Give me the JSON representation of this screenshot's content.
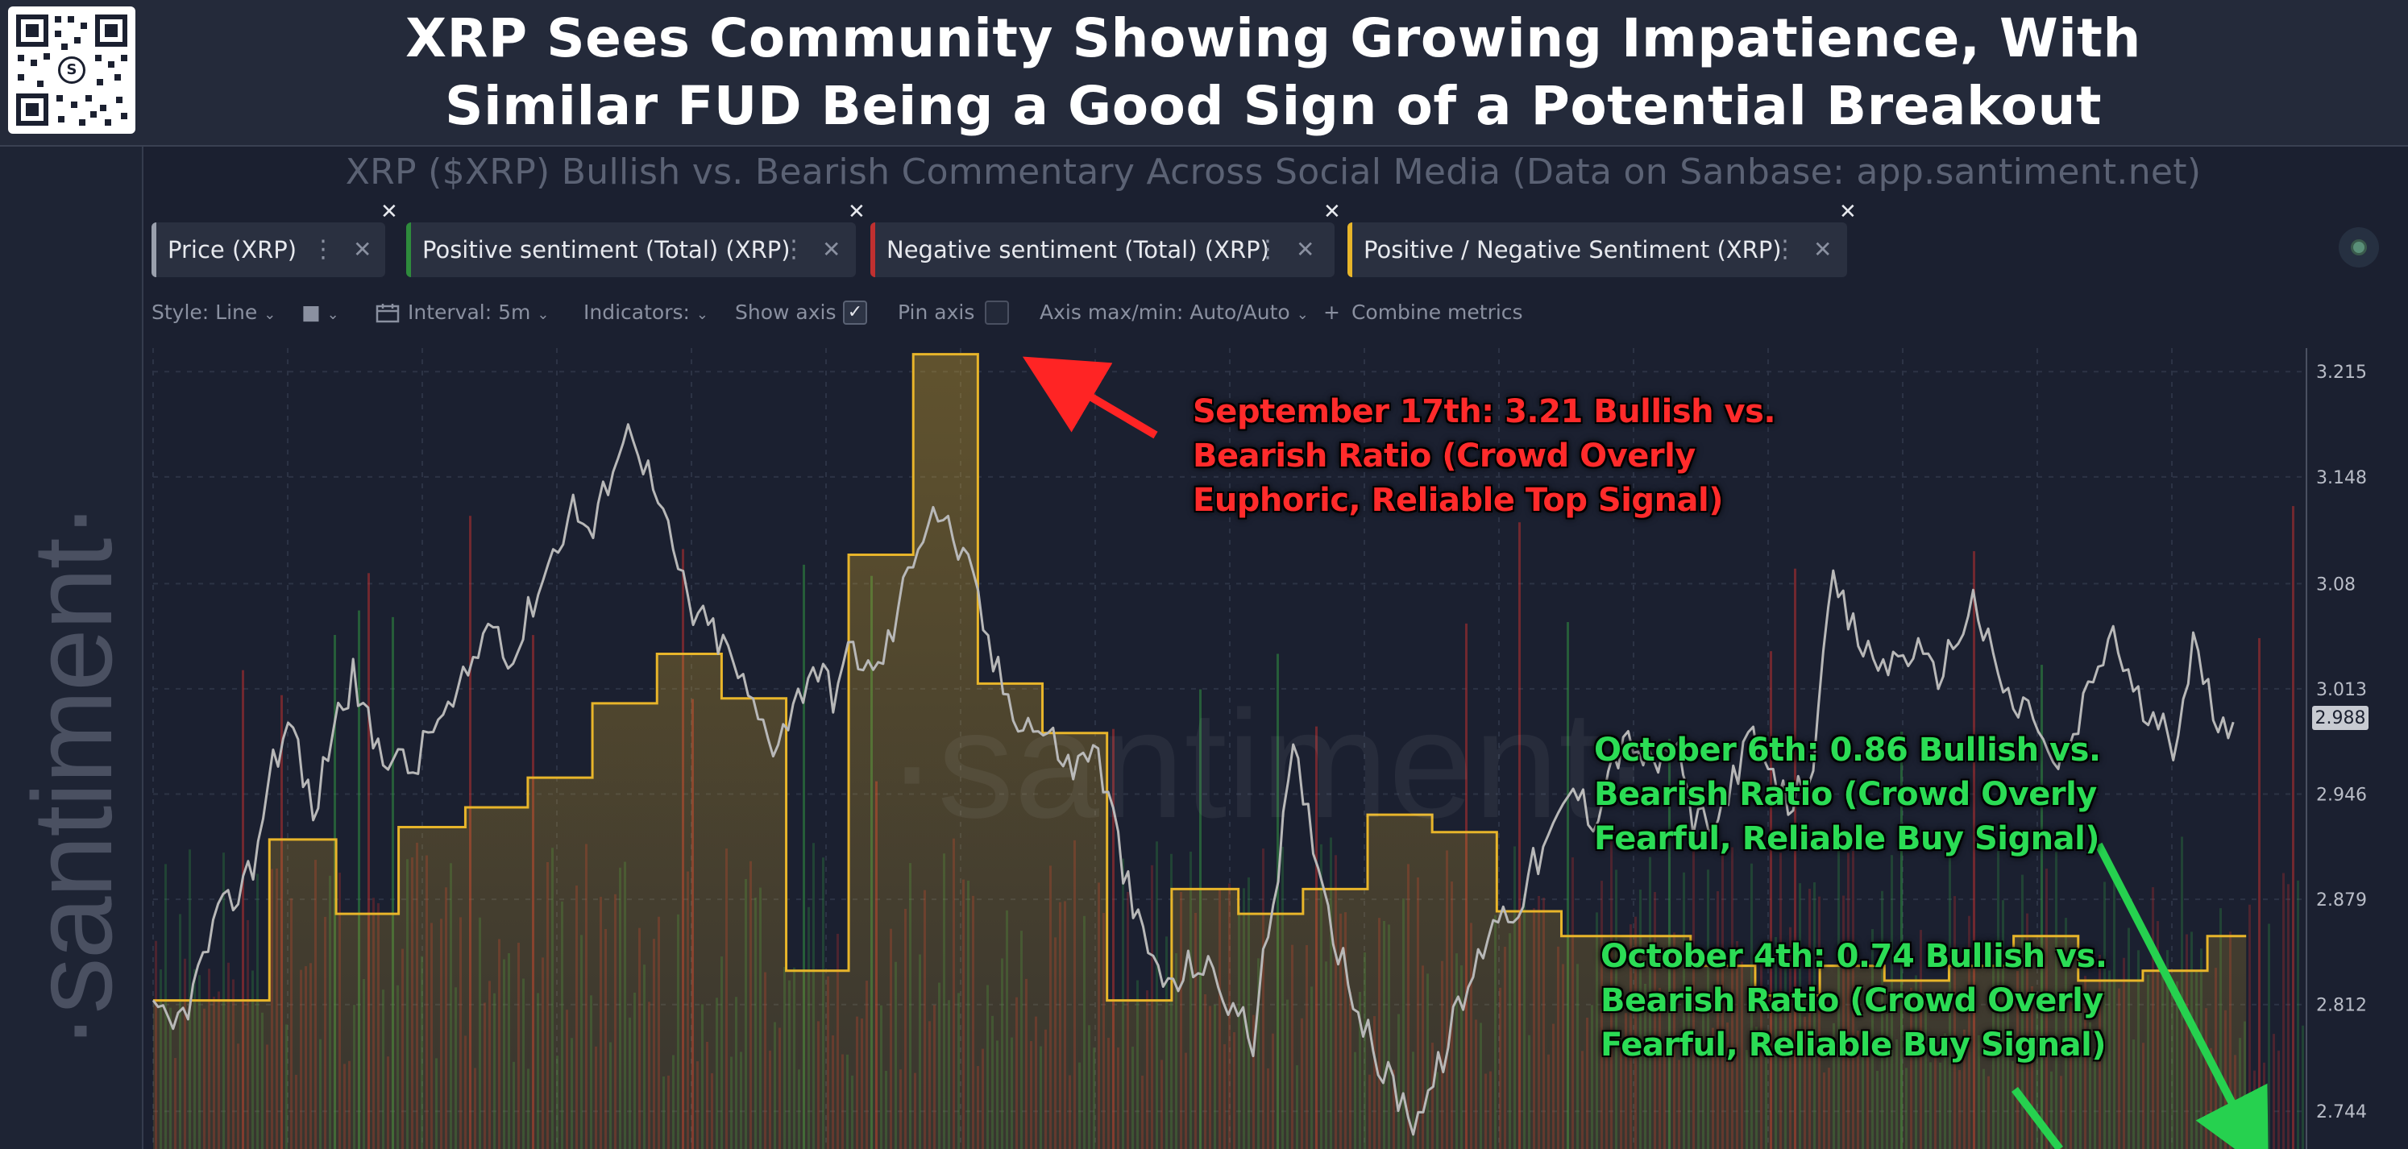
{
  "header": {
    "title_line1": "XRP Sees Community Showing Growing Impatience, With",
    "title_line2": "Similar FUD Being a Good Sign of a Potential Breakout",
    "subtitle": "XRP ($XRP) Bullish vs. Bearish Commentary Across Social Media (Data on Sanbase: app.santiment.net)"
  },
  "brand": {
    "side_watermark": "·santiment·",
    "center_watermark": "·santiment·",
    "qr_logo": "S"
  },
  "tabs": [
    {
      "label": "Price (XRP)",
      "color": "#9aa0ad"
    },
    {
      "label": "Positive sentiment (Total) (XRP)",
      "color": "#2e8b3c"
    },
    {
      "label": "Negative sentiment (Total) (XRP)",
      "color": "#c03030"
    },
    {
      "label": "Positive / Negative Sentiment (XRP)",
      "color": "#e8b52a"
    }
  ],
  "toolbar": {
    "style": "Style: Line",
    "interval": "Interval: 5m",
    "indicators": "Indicators:",
    "show_axis": "Show axis",
    "pin_axis": "Pin axis",
    "axis_maxmin": "Axis max/min: Auto/Auto",
    "combine": "Combine metrics",
    "plus": "+",
    "chevron": "⌄",
    "check": "✓"
  },
  "icons": {
    "more": "⋮",
    "close": "✕",
    "close_corner": "✕",
    "color_swatch": "■",
    "interval": "calendar-icon"
  },
  "annotations": {
    "sep17": "September 17th: 3.21 Bullish vs.\nBearish Ratio (Crowd Overly\nEuphoric, Reliable Top Signal)",
    "oct6": "October 6th: 0.86 Bullish vs.\nBearish Ratio (Crowd Overly\nFearful, Reliable Buy Signal)",
    "oct4": "October 4th: 0.74 Bullish vs.\nBearish Ratio (Crowd Overly\nFearful, Reliable Buy Signal)"
  },
  "chart_data": {
    "type": "line",
    "title": "XRP ($XRP) Bullish vs. Bearish Commentary Across Social Media (Data on Sanbase: app.santiment.net)",
    "y_axis_ticks": [
      3.215,
      3.148,
      3.08,
      3.013,
      2.946,
      2.879,
      2.812,
      2.744
    ],
    "ylim": [
      2.72,
      3.23
    ],
    "current_price_label": "2.988",
    "price_points": [
      2.805,
      2.795,
      2.82,
      2.86,
      2.88,
      2.9,
      2.97,
      2.99,
      2.93,
      2.99,
      3.02,
      2.98,
      2.97,
      2.96,
      2.99,
      3.0,
      3.03,
      3.06,
      3.03,
      3.07,
      3.1,
      3.13,
      3.11,
      3.16,
      3.18,
      3.14,
      3.1,
      3.06,
      3.05,
      3.03,
      3.0,
      2.98,
      3.0,
      3.03,
      3.01,
      3.04,
      3.02,
      3.05,
      3.1,
      3.13,
      3.11,
      3.08,
      3.03,
      3.0,
      2.99,
      2.98,
      2.96,
      2.98,
      2.93,
      2.87,
      2.84,
      2.82,
      2.84,
      2.83,
      2.81,
      2.79,
      2.88,
      2.97,
      2.92,
      2.86,
      2.82,
      2.78,
      2.76,
      2.74,
      2.76,
      2.8,
      2.83,
      2.87,
      2.87,
      2.9,
      2.92,
      2.95,
      2.93,
      2.97,
      2.98,
      2.96,
      2.98,
      2.93,
      2.92,
      2.96,
      2.98,
      2.95,
      2.94,
      2.97,
      3.08,
      3.05,
      3.03,
      3.03,
      3.04,
      3.02,
      3.04,
      3.07,
      3.03,
      3.0,
      3.0,
      2.96,
      2.98,
      3.02,
      3.05,
      3.01,
      2.99,
      2.98,
      3.04,
      3.0,
      2.99
    ],
    "series": [
      {
        "name": "Positive / Negative Sentiment (XRP)",
        "color": "#e8b52a",
        "type": "step",
        "steps": [
          {
            "start": 0.0,
            "end": 0.054,
            "value": 0.6
          },
          {
            "start": 0.054,
            "end": 0.085,
            "value": 1.25
          },
          {
            "start": 0.085,
            "end": 0.114,
            "value": 0.95
          },
          {
            "start": 0.114,
            "end": 0.145,
            "value": 1.3
          },
          {
            "start": 0.145,
            "end": 0.174,
            "value": 1.38
          },
          {
            "start": 0.174,
            "end": 0.204,
            "value": 1.5
          },
          {
            "start": 0.204,
            "end": 0.234,
            "value": 1.8
          },
          {
            "start": 0.234,
            "end": 0.264,
            "value": 2.0
          },
          {
            "start": 0.264,
            "end": 0.294,
            "value": 1.82
          },
          {
            "start": 0.294,
            "end": 0.323,
            "value": 0.72
          },
          {
            "start": 0.323,
            "end": 0.353,
            "value": 2.4
          },
          {
            "start": 0.353,
            "end": 0.383,
            "value": 3.21
          },
          {
            "start": 0.383,
            "end": 0.413,
            "value": 1.88
          },
          {
            "start": 0.413,
            "end": 0.443,
            "value": 1.68
          },
          {
            "start": 0.443,
            "end": 0.473,
            "value": 0.6
          },
          {
            "start": 0.473,
            "end": 0.504,
            "value": 1.05
          },
          {
            "start": 0.504,
            "end": 0.534,
            "value": 0.95
          },
          {
            "start": 0.534,
            "end": 0.564,
            "value": 1.05
          },
          {
            "start": 0.564,
            "end": 0.594,
            "value": 1.35
          },
          {
            "start": 0.594,
            "end": 0.624,
            "value": 1.28
          },
          {
            "start": 0.624,
            "end": 0.654,
            "value": 0.96
          },
          {
            "start": 0.654,
            "end": 0.684,
            "value": 0.86
          },
          {
            "start": 0.684,
            "end": 0.714,
            "value": 0.86
          },
          {
            "start": 0.714,
            "end": 0.744,
            "value": 0.74
          },
          {
            "start": 0.744,
            "end": 0.774,
            "value": 0.62
          },
          {
            "start": 0.774,
            "end": 0.804,
            "value": 0.74
          },
          {
            "start": 0.804,
            "end": 0.834,
            "value": 0.68
          },
          {
            "start": 0.834,
            "end": 0.864,
            "value": 0.74
          },
          {
            "start": 0.864,
            "end": 0.894,
            "value": 0.86
          },
          {
            "start": 0.894,
            "end": 0.924,
            "value": 0.68
          },
          {
            "start": 0.924,
            "end": 0.954,
            "value": 0.72
          },
          {
            "start": 0.954,
            "end": 0.972,
            "value": 0.86
          }
        ]
      }
    ]
  }
}
